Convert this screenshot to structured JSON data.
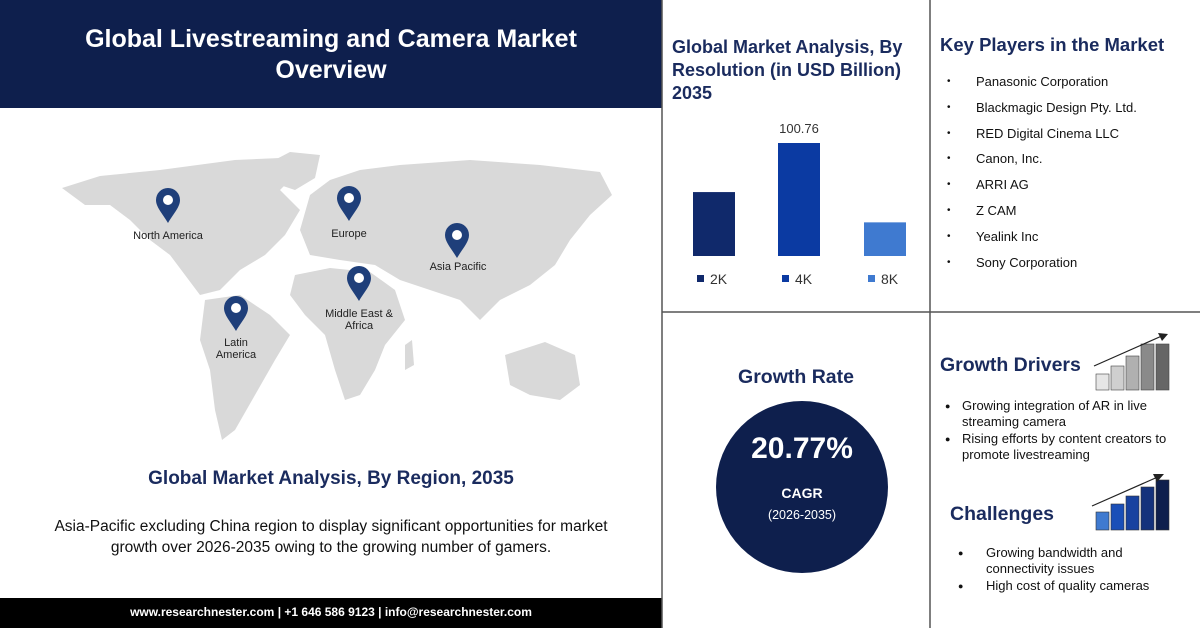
{
  "header": {
    "title": "Global Livestreaming and Camera Market Overview"
  },
  "map": {
    "regions": [
      "North America",
      "Europe",
      "Asia Pacific",
      "Middle East & Africa",
      "Latin America"
    ],
    "title": "Global Market Analysis, By Region, 2035",
    "description": "Asia-Pacific excluding China region to display significant opportunities for market growth over 2026-2035 owing to the growing number of gamers."
  },
  "footer": {
    "contact": "www.researchnester.com | +1 646 586 9123 | info@researchnester.com"
  },
  "chart_data": {
    "type": "bar",
    "title": "Global Market Analysis, By Resolution (in USD Billion) 2035",
    "categories": [
      "2K",
      "4K",
      "8K"
    ],
    "values": [
      57,
      100.76,
      30
    ],
    "colors": [
      "#10296b",
      "#0b3aa2",
      "#3f7ad0"
    ],
    "legend": true
  },
  "key_players": {
    "title": "Key Players in the Market",
    "items": [
      "Panasonic Corporation",
      "Blackmagic Design Pty. Ltd.",
      "RED Digital Cinema LLC",
      "Canon, Inc.",
      "ARRI AG",
      "Z CAM",
      "Yealink Inc",
      "Sony Corporation"
    ]
  },
  "growth_rate": {
    "title": "Growth Rate",
    "value": "20.77%",
    "label": "CAGR",
    "period": "(2026-2035)"
  },
  "growth_drivers": {
    "title": "Growth Drivers",
    "items": [
      "Growing integration of AR in live streaming camera",
      "Rising efforts by content creators to promote livestreaming"
    ]
  },
  "challenges": {
    "title": "Challenges",
    "items": [
      "Growing bandwidth and connectivity issues",
      "High cost of quality cameras"
    ]
  }
}
